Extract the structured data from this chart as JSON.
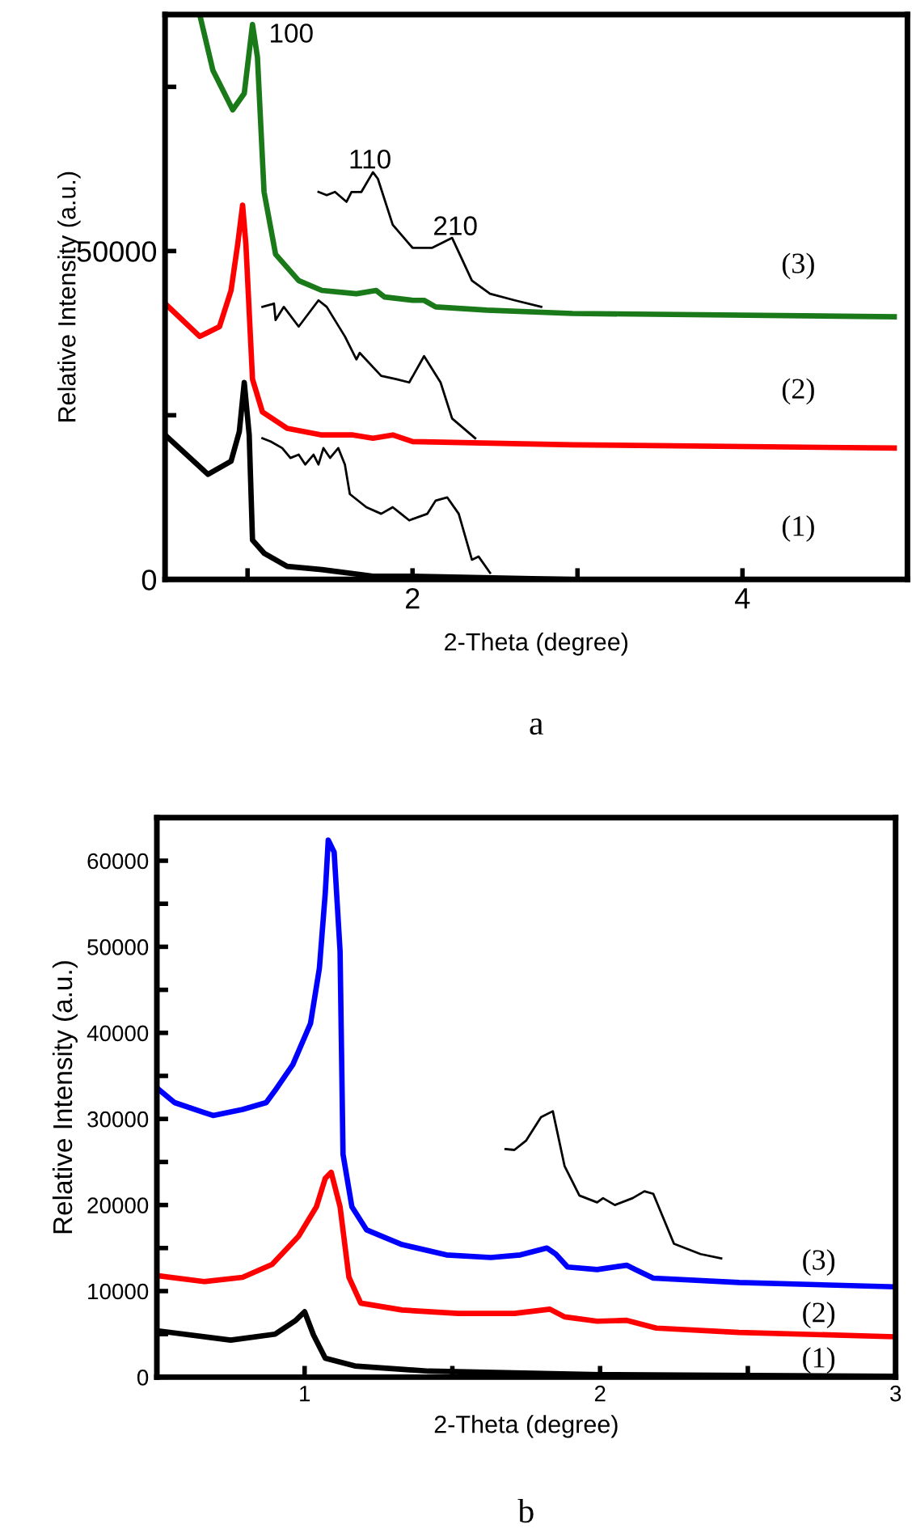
{
  "chart_data": [
    {
      "type": "line",
      "xlabel": "2-Theta (degree)",
      "ylabel": "Relative Intensity (a.u.)",
      "xlim": [
        0.5,
        5
      ],
      "ylim": [
        0,
        86000
      ],
      "xticks": [
        {
          "value": 1,
          "label": null
        },
        2,
        {
          "value": 3,
          "label": null
        },
        4
      ],
      "yticks": [
        0,
        {
          "value": 25000,
          "label": null
        },
        50000,
        {
          "value": 75000,
          "label": null
        }
      ],
      "marker": "none",
      "line_style": "solid",
      "series": [
        {
          "color": "#000000",
          "x": [
            0.5,
            0.76,
            0.9,
            0.95,
            0.98,
            1.01,
            1.03,
            1.1,
            1.24,
            1.45,
            1.76,
            2.0,
            2.97,
            4.92
          ],
          "values": [
            22000,
            16000,
            18000,
            22500,
            30000,
            22000,
            6000,
            4000,
            2000,
            1500,
            500,
            500,
            0,
            0
          ]
        },
        {
          "color": "#ff0000",
          "x": [
            0.5,
            0.71,
            0.83,
            0.9,
            0.94,
            0.97,
            0.99,
            1.03,
            1.09,
            1.24,
            1.45,
            1.64,
            1.76,
            1.88,
            2.0,
            2.97,
            4.92
          ],
          "values": [
            42000,
            37000,
            38500,
            44000,
            51000,
            57000,
            51000,
            30500,
            25500,
            23000,
            22000,
            22000,
            21500,
            22000,
            21000,
            20500,
            20000
          ]
        },
        {
          "color": "#1a7a1a",
          "x": [
            0.71,
            0.79,
            0.91,
            0.98,
            1.03,
            1.06,
            1.1,
            1.17,
            1.31,
            1.45,
            1.66,
            1.78,
            1.83,
            2.0,
            2.07,
            2.14,
            2.45,
            2.97,
            4.92
          ],
          "values": [
            86000,
            77500,
            71500,
            74000,
            84500,
            79500,
            59000,
            49500,
            45500,
            44000,
            43500,
            44000,
            43000,
            42500,
            42500,
            41500,
            41000,
            40500,
            40000
          ]
        },
        {
          "color": "#000000",
          "x": [
            1.09,
            1.14,
            1.21,
            1.26,
            1.31,
            1.35,
            1.4,
            1.43,
            1.46,
            1.5,
            1.55,
            1.59,
            1.62,
            1.72,
            1.81,
            1.88,
            1.93,
            1.98,
            2.09,
            2.14,
            2.21,
            2.28,
            2.36,
            2.4,
            2.47
          ],
          "values": [
            21500,
            21000,
            20000,
            18500,
            19000,
            17500,
            19000,
            17500,
            20000,
            18500,
            20000,
            17500,
            13000,
            11000,
            10000,
            11000,
            10000,
            9000,
            10000,
            12000,
            12500,
            10000,
            3000,
            3500,
            1000
          ]
        },
        {
          "color": "#000000",
          "x": [
            1.09,
            1.16,
            1.17,
            1.22,
            1.31,
            1.43,
            1.48,
            1.59,
            1.66,
            1.68,
            1.81,
            1.9,
            1.98,
            2.07,
            2.17,
            2.24,
            2.38
          ],
          "values": [
            41500,
            42000,
            39500,
            41500,
            38500,
            42500,
            41500,
            37000,
            33500,
            34500,
            31000,
            30500,
            30000,
            34000,
            30000,
            24500,
            21500
          ]
        },
        {
          "color": "#000000",
          "x": [
            1.43,
            1.48,
            1.53,
            1.6,
            1.63,
            1.69,
            1.76,
            1.79,
            1.88,
            2.0,
            2.12,
            2.24,
            2.36,
            2.47,
            2.62,
            2.78
          ],
          "values": [
            59000,
            58500,
            59000,
            57500,
            59000,
            59000,
            62000,
            61000,
            54000,
            50500,
            50500,
            52000,
            45500,
            43500,
            42500,
            41500
          ]
        }
      ],
      "annotations": [
        "100",
        "110",
        "210",
        "(1)",
        "(2)",
        "(3)",
        "a"
      ]
    },
    {
      "type": "line",
      "xlabel": "2-Theta (degree)",
      "ylabel": "Relative Intensity (a.u.)",
      "xlim": [
        0.5,
        3
      ],
      "ylim": [
        0,
        65000
      ],
      "xticks": [
        1,
        {
          "value": 1.5,
          "label": null
        },
        2,
        {
          "value": 2.5,
          "label": null
        },
        3
      ],
      "yticks": [
        0,
        {
          "value": 5000,
          "label": null
        },
        10000,
        {
          "value": 15000,
          "label": null
        },
        20000,
        {
          "value": 25000,
          "label": null
        },
        30000,
        {
          "value": 35000,
          "label": null
        },
        40000,
        {
          "value": 45000,
          "label": null
        },
        50000,
        {
          "value": 55000,
          "label": null
        },
        60000
      ],
      "marker": "none",
      "line_style": "solid",
      "series": [
        {
          "color": "#000000",
          "x": [
            0.5,
            0.75,
            0.9,
            0.97,
            1.0,
            1.03,
            1.07,
            1.17,
            1.42,
            2.0,
            2.99
          ],
          "values": [
            5400,
            4300,
            5000,
            6600,
            7600,
            4900,
            2200,
            1300,
            700,
            300,
            100
          ]
        },
        {
          "color": "#ff0000",
          "x": [
            0.5,
            0.66,
            0.79,
            0.89,
            0.98,
            1.04,
            1.07,
            1.09,
            1.12,
            1.15,
            1.19,
            1.33,
            1.52,
            1.71,
            1.83,
            1.88,
            1.99,
            2.09,
            2.19,
            2.47,
            2.99
          ],
          "values": [
            11800,
            11100,
            11600,
            13100,
            16400,
            19800,
            23100,
            23800,
            19800,
            11600,
            8600,
            7800,
            7400,
            7400,
            7900,
            7000,
            6500,
            6600,
            5700,
            5200,
            4700
          ]
        },
        {
          "color": "#0000ff",
          "x": [
            0.5,
            0.56,
            0.69,
            0.79,
            0.87,
            0.9,
            0.96,
            1.02,
            1.05,
            1.07,
            1.08,
            1.1,
            1.12,
            1.13,
            1.16,
            1.21,
            1.33,
            1.48,
            1.63,
            1.73,
            1.82,
            1.85,
            1.89,
            1.99,
            2.09,
            2.12,
            2.18,
            2.47,
            2.99
          ],
          "values": [
            33600,
            31900,
            30400,
            31100,
            31900,
            33300,
            36300,
            41100,
            47500,
            56300,
            62400,
            61000,
            49500,
            25900,
            19800,
            17100,
            15400,
            14200,
            13900,
            14200,
            15000,
            14300,
            12800,
            12500,
            13000,
            12500,
            11500,
            11000,
            10500
          ]
        },
        {
          "color": "#000000",
          "x": [
            1.68,
            1.71,
            1.75,
            1.8,
            1.84,
            1.88,
            1.93,
            1.99,
            2.01,
            2.05,
            2.11,
            2.15,
            2.18,
            2.25,
            2.34,
            2.41
          ],
          "values": [
            26500,
            26400,
            27500,
            30200,
            30900,
            24500,
            21100,
            20300,
            20800,
            20000,
            20800,
            21600,
            21300,
            15500,
            14300,
            13800
          ]
        }
      ],
      "annotations": [
        "(3)",
        "(2)",
        "(1)",
        "b"
      ]
    }
  ]
}
